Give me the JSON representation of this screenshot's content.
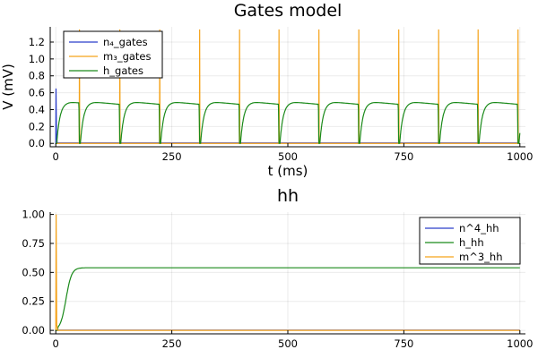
{
  "chart_data": [
    {
      "type": "line",
      "title": "Gates model",
      "xlabel": "t (ms)",
      "ylabel": "V (mV)",
      "xlim": [
        -12,
        1012
      ],
      "ylim": [
        -0.04,
        1.38
      ],
      "xticks": [
        0,
        250,
        500,
        750,
        1000
      ],
      "yticks": [
        0.0,
        0.2,
        0.4,
        0.6,
        0.8,
        1.0,
        1.2
      ],
      "ytick_labels": [
        "0.0",
        "0.2",
        "0.4",
        "0.6",
        "0.8",
        "1.0",
        "1.2"
      ],
      "grid": true,
      "legend_position": "top-left",
      "spike_times": [
        0,
        51,
        138,
        224,
        310,
        396,
        481,
        567,
        653,
        739,
        825,
        910,
        996
      ],
      "series": [
        {
          "name": "n₄_gates",
          "color": "#2a3dca",
          "description_values": {
            "initial_peak": 0.65,
            "baseline": 0.0
          }
        },
        {
          "name": "m₃_gates",
          "color": "#f5a31a",
          "description_values": {
            "spike_peak": 1.35,
            "baseline": 0.0
          }
        },
        {
          "name": "h_gates",
          "color": "#1a8a1a",
          "description_values": {
            "plateau": 0.49,
            "min": 0.0
          }
        }
      ]
    },
    {
      "type": "line",
      "title": "hh",
      "xlabel": "",
      "ylabel": "",
      "xlim": [
        -12,
        1012
      ],
      "ylim": [
        -0.03,
        1.02
      ],
      "xticks": [
        0,
        250,
        500,
        750,
        1000
      ],
      "yticks": [
        0.0,
        0.25,
        0.5,
        0.75,
        1.0
      ],
      "ytick_labels": [
        "0.00",
        "0.25",
        "0.50",
        "0.75",
        "1.00"
      ],
      "grid": true,
      "legend_position": "top-right",
      "series": [
        {
          "name": "n^4_hh",
          "color": "#2a3dca",
          "description_values": {
            "steady": 0.0
          }
        },
        {
          "name": "h_hh",
          "color": "#1a8a1a",
          "description_values": {
            "steady": 0.54
          }
        },
        {
          "name": "m^3_hh",
          "color": "#f5a31a",
          "description_values": {
            "initial_peak": 1.0,
            "steady": 0.0
          }
        }
      ]
    }
  ]
}
